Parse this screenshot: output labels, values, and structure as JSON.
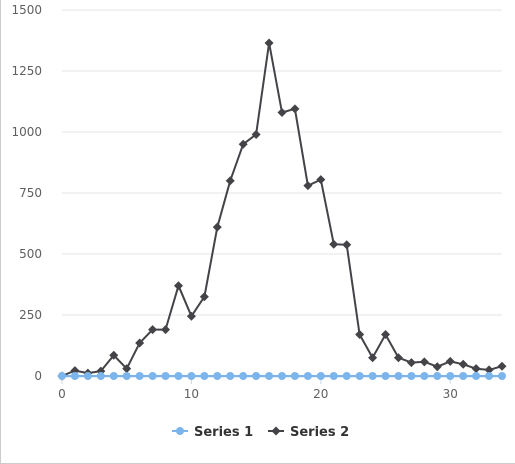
{
  "chart_data": {
    "type": "line",
    "x": [
      0,
      1,
      2,
      3,
      4,
      5,
      6,
      7,
      8,
      9,
      10,
      11,
      12,
      13,
      14,
      15,
      16,
      17,
      18,
      19,
      20,
      21,
      22,
      23,
      24,
      25,
      26,
      27,
      28,
      29,
      30,
      31,
      32,
      33,
      34
    ],
    "series": [
      {
        "name": "Series 1",
        "color": "#7cb5ec",
        "marker": "circle",
        "values": [
          0,
          0,
          0,
          0,
          0,
          0,
          0,
          0,
          0,
          0,
          0,
          0,
          0,
          0,
          0,
          0,
          0,
          0,
          0,
          0,
          0,
          0,
          0,
          0,
          0,
          0,
          0,
          0,
          0,
          0,
          0,
          0,
          0,
          0,
          0
        ]
      },
      {
        "name": "Series 2",
        "color": "#434348",
        "marker": "diamond",
        "values": [
          0,
          22,
          12,
          20,
          85,
          30,
          135,
          190,
          190,
          370,
          245,
          325,
          610,
          800,
          950,
          990,
          1365,
          1080,
          1095,
          780,
          805,
          540,
          538,
          170,
          75,
          170,
          75,
          55,
          58,
          38,
          60,
          48,
          30,
          25,
          40
        ]
      }
    ],
    "title": "",
    "xlabel": "",
    "ylabel": "",
    "xlim": [
      0,
      34
    ],
    "ylim": [
      0,
      1500
    ],
    "xticks": [
      0,
      10,
      20,
      30
    ],
    "yticks": [
      0,
      250,
      500,
      750,
      1000,
      1250,
      1500
    ],
    "grid": "horizontal",
    "legend": "bottom-center"
  }
}
